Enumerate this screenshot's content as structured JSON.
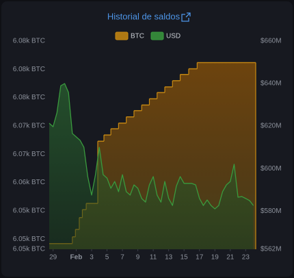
{
  "chart_data": {
    "type": "area",
    "title": "Historial de saldos",
    "xlim": [
      0.5,
      27.3
    ],
    "xticks": [
      {
        "value": 1,
        "label": "29"
      },
      {
        "value": 4,
        "label": "Feb"
      },
      {
        "value": 6,
        "label": "3"
      },
      {
        "value": 8,
        "label": "5"
      },
      {
        "value": 10,
        "label": "7"
      },
      {
        "value": 12,
        "label": "9"
      },
      {
        "value": 14,
        "label": "11"
      },
      {
        "value": 16,
        "label": "13"
      },
      {
        "value": 18,
        "label": "15"
      },
      {
        "value": 20,
        "label": "17"
      },
      {
        "value": 22,
        "label": "19"
      },
      {
        "value": 24,
        "label": "21"
      },
      {
        "value": 26,
        "label": "23"
      }
    ],
    "ylim": [
      6048.2,
      6085
    ],
    "yticks": [
      {
        "value": 6085,
        "label": "6.08k BTC"
      },
      {
        "value": 6080,
        "label": "6.08k BTC"
      },
      {
        "value": 6075,
        "label": "6.08k BTC"
      },
      {
        "value": 6070,
        "label": "6.07k BTC"
      },
      {
        "value": 6065,
        "label": "6.07k BTC"
      },
      {
        "value": 6060,
        "label": "6.06k BTC"
      },
      {
        "value": 6055,
        "label": "6.05k BTC"
      },
      {
        "value": 6050,
        "label": "6.05k BTC"
      },
      {
        "value": 6048.2,
        "label": "6.05k BTC"
      }
    ],
    "y2lim": [
      562,
      660
    ],
    "y2ticks": [
      {
        "value": 660,
        "label": "$660M"
      },
      {
        "value": 640,
        "label": "$640M"
      },
      {
        "value": 620,
        "label": "$620M"
      },
      {
        "value": 600,
        "label": "$600M"
      },
      {
        "value": 580,
        "label": "$580M"
      },
      {
        "value": 562,
        "label": "$562M"
      }
    ],
    "grid": false,
    "legend": "top",
    "series": [
      {
        "name": "BTC",
        "color": "#c98a12",
        "step": true,
        "x": [
          0.5,
          3.5,
          3.9,
          4.4,
          4.8,
          5.3,
          6.8,
          7.6,
          8.5,
          9.5,
          10.5,
          11.5,
          12.5,
          13.5,
          14.5,
          15.5,
          16.5,
          17.5,
          18.6,
          19.7,
          27.3
        ],
        "values": [
          6049.2,
          6050.4,
          6051.7,
          6053.8,
          6055.2,
          6056.3,
          6067.3,
          6068.4,
          6069.5,
          6070.5,
          6071.6,
          6072.7,
          6073.7,
          6074.8,
          6075.9,
          6076.9,
          6078.0,
          6079.1,
          6080.1,
          6081.2,
          6081.2
        ]
      },
      {
        "name": "USD",
        "color": "#3a9a3e",
        "axis": "y2",
        "x": [
          0.5,
          1.0,
          1.5,
          2.0,
          2.5,
          3.0,
          3.5,
          4.0,
          4.5,
          5.0,
          5.5,
          6.0,
          6.5,
          7.0,
          7.5,
          8.0,
          8.5,
          9.0,
          9.5,
          10.0,
          10.5,
          11.0,
          11.5,
          12.0,
          12.5,
          13.0,
          13.5,
          14.0,
          14.5,
          15.0,
          15.5,
          16.0,
          16.5,
          17.0,
          17.5,
          18.0,
          18.5,
          19.0,
          19.5,
          20.0,
          20.5,
          21.0,
          21.5,
          22.0,
          22.5,
          23.0,
          23.5,
          24.0,
          24.5,
          25.0,
          25.5,
          26.0,
          26.5,
          27.0
        ],
        "values": [
          621.3,
          619.7,
          626.2,
          639.0,
          640.0,
          635.8,
          616.5,
          614.9,
          613.3,
          610.0,
          596.2,
          587.5,
          597.1,
          610.0,
          597.1,
          595.5,
          590.7,
          593.9,
          589.1,
          597.1,
          589.1,
          587.5,
          592.3,
          590.7,
          585.9,
          584.2,
          592.3,
          596.2,
          587.5,
          584.2,
          593.9,
          585.9,
          582.6,
          591.7,
          596.2,
          593.0,
          593.0,
          593.0,
          592.3,
          585.9,
          582.6,
          585.2,
          582.6,
          581.0,
          582.6,
          589.1,
          592.3,
          593.9,
          602.0,
          586.5,
          586.8,
          585.9,
          584.9,
          582.6
        ]
      }
    ]
  }
}
